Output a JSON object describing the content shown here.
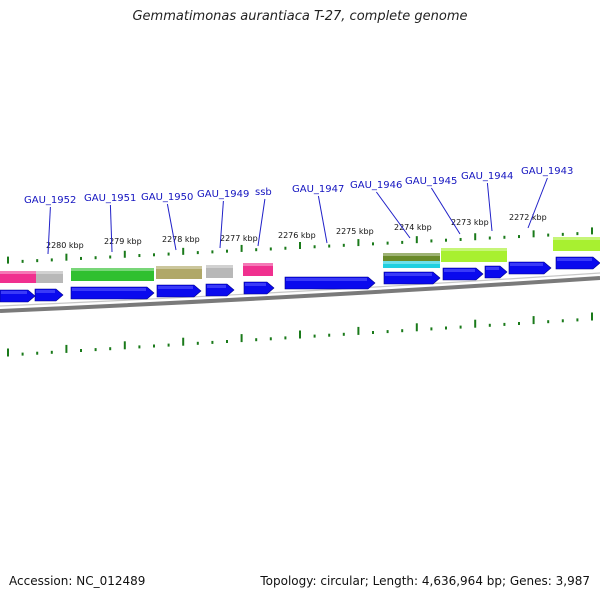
{
  "header": {
    "title": "Gemmatimonas aurantiaca T-27, complete genome"
  },
  "footer": {
    "accession": "Accession: NC_012489",
    "summary": "Topology: circular; Length: 4,636,964 bp; Genes: 3,987"
  },
  "scale_ticks": [
    {
      "kbp": 2280,
      "label": "2280 kbp"
    },
    {
      "kbp": 2279,
      "label": "2279 kbp"
    },
    {
      "kbp": 2278,
      "label": "2278 kbp"
    },
    {
      "kbp": 2277,
      "label": "2277 kbp"
    },
    {
      "kbp": 2276,
      "label": "2276 kbp"
    },
    {
      "kbp": 2275,
      "label": "2275 kbp"
    },
    {
      "kbp": 2274,
      "label": "2274 kbp"
    },
    {
      "kbp": 2273,
      "label": "2273 kbp"
    },
    {
      "kbp": 2272,
      "label": "2272 kbp"
    }
  ],
  "gene_labels": [
    {
      "label": "GAU_1952"
    },
    {
      "label": "GAU_1951"
    },
    {
      "label": "GAU_1950"
    },
    {
      "label": "GAU_1949"
    },
    {
      "label": "ssb"
    },
    {
      "label": "GAU_1947"
    },
    {
      "label": "GAU_1946"
    },
    {
      "label": "GAU_1945"
    },
    {
      "label": "GAU_1944"
    },
    {
      "label": "GAU_1943"
    }
  ],
  "colors": {
    "gene_forward": "#0a0aee",
    "label_text": "#1515c0",
    "tick": "#1a7a1a",
    "ring": "#7a7a7a",
    "feature_magenta": "#f0308f",
    "feature_gray": "#b8b8b8",
    "feature_green": "#30c030",
    "feature_olive": "#b0a868",
    "feature_darkolive": "#6a8a2a",
    "feature_cyan": "#20d0e0",
    "feature_lime": "#a8f030"
  }
}
